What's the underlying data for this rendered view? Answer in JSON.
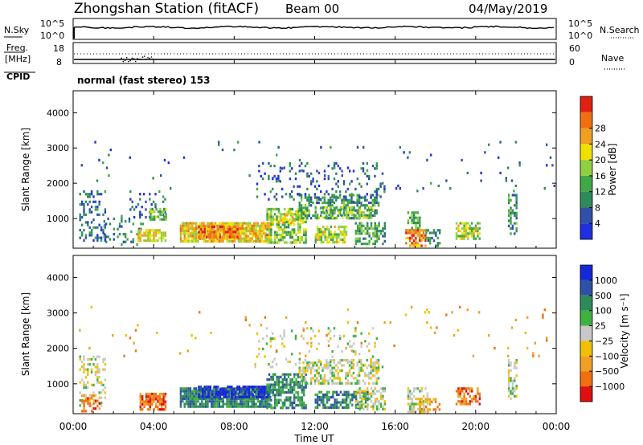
{
  "header": {
    "station": "Zhongshan Station (fitACF)",
    "beam": "Beam 00",
    "date": "04/May/2019"
  },
  "noise_panel": {
    "left_label": "N.Sky",
    "right_label": "N.Search",
    "ytick_top": "10^5",
    "ytick_bottom": "10^0"
  },
  "freq_panel": {
    "left_label_line1": "Freq.",
    "left_label_line2": "[MHz]",
    "left_ticks": [
      "18",
      "8"
    ],
    "right_label": "Nave",
    "right_ticks": [
      "60",
      "0"
    ],
    "cpid_label": "CPID",
    "cpid_text": "normal (fast stereo) 153"
  },
  "colors": {
    "power_scale": [
      "#2030e0",
      "#3050a8",
      "#2e8a5a",
      "#40a845",
      "#90d040",
      "#f0e000",
      "#f0a020",
      "#f07010",
      "#e02010"
    ],
    "velocity_scale": [
      "#1428d8",
      "#3050a8",
      "#2e8a5a",
      "#40b040",
      "#c8c8c8",
      "#f0c000",
      "#f0a020",
      "#f07010",
      "#e01010"
    ]
  },
  "chart_data": [
    {
      "type": "heatmap",
      "name": "power",
      "xlabel": "",
      "ylabel": "Slant Range [km]",
      "yticks": [
        "1000",
        "2000",
        "3000",
        "4000"
      ],
      "ylim": [
        180,
        4600
      ],
      "xlim": [
        0,
        24
      ],
      "colorbar": {
        "label": "Power [dB]",
        "ticks": [
          "4",
          "8",
          "12",
          "16",
          "20",
          "24",
          "28"
        ],
        "range": [
          0,
          32
        ]
      },
      "regions": [
        {
          "x0": 0.3,
          "x1": 1.6,
          "y0": 400,
          "y1": 1800,
          "v": 6,
          "d": 0.35
        },
        {
          "x0": 1.5,
          "x1": 3.5,
          "y0": 250,
          "y1": 1100,
          "v": 8,
          "d": 0.2
        },
        {
          "x0": 3.2,
          "x1": 4.6,
          "y0": 350,
          "y1": 700,
          "v": 20,
          "d": 0.7
        },
        {
          "x0": 2.8,
          "x1": 4.6,
          "y0": 1000,
          "y1": 1800,
          "v": 5,
          "d": 0.2
        },
        {
          "x0": 3.8,
          "x1": 4.6,
          "y0": 1000,
          "y1": 1300,
          "v": 13,
          "d": 0.6
        },
        {
          "x0": 5.3,
          "x1": 9.8,
          "y0": 350,
          "y1": 900,
          "v": 22,
          "d": 0.9
        },
        {
          "x0": 6.2,
          "x1": 8.2,
          "y0": 450,
          "y1": 800,
          "v": 27,
          "d": 0.7
        },
        {
          "x0": 9.6,
          "x1": 11.6,
          "y0": 300,
          "y1": 1300,
          "v": 14,
          "d": 0.65
        },
        {
          "x0": 10.2,
          "x1": 11.4,
          "y0": 900,
          "y1": 1200,
          "v": 20,
          "d": 0.6
        },
        {
          "x0": 11.2,
          "x1": 15.2,
          "y0": 1000,
          "y1": 1700,
          "v": 9,
          "d": 0.5
        },
        {
          "x0": 12.0,
          "x1": 15.0,
          "y0": 1000,
          "y1": 1350,
          "v": 15,
          "d": 0.5
        },
        {
          "x0": 12.0,
          "x1": 13.6,
          "y0": 300,
          "y1": 800,
          "v": 17,
          "d": 0.7
        },
        {
          "x0": 14.0,
          "x1": 15.5,
          "y0": 250,
          "y1": 900,
          "v": 11,
          "d": 0.5
        },
        {
          "x0": 9.0,
          "x1": 15.5,
          "y0": 1500,
          "y1": 2600,
          "v": 5,
          "d": 0.12
        },
        {
          "x0": 16.5,
          "x1": 17.5,
          "y0": 200,
          "y1": 700,
          "v": 27,
          "d": 0.75
        },
        {
          "x0": 16.6,
          "x1": 17.2,
          "y0": 700,
          "y1": 1200,
          "v": 12,
          "d": 0.55
        },
        {
          "x0": 17.5,
          "x1": 18.2,
          "y0": 200,
          "y1": 700,
          "v": 8,
          "d": 0.4
        },
        {
          "x0": 19.0,
          "x1": 20.2,
          "y0": 450,
          "y1": 900,
          "v": 17,
          "d": 0.55
        },
        {
          "x0": 21.6,
          "x1": 22.0,
          "y0": 600,
          "y1": 1700,
          "v": 9,
          "d": 0.5
        },
        {
          "x0": 0.0,
          "x1": 24.0,
          "y0": 1800,
          "y1": 3200,
          "v": 5,
          "d": 0.015
        }
      ]
    },
    {
      "type": "heatmap",
      "name": "velocity",
      "xlabel": "Time UT",
      "ylabel": "Slant Range [km]",
      "xticks": [
        "00:00",
        "04:00",
        "08:00",
        "12:00",
        "16:00",
        "20:00",
        "00:00"
      ],
      "yticks": [
        "1000",
        "2000",
        "3000",
        "4000"
      ],
      "ylim": [
        180,
        4600
      ],
      "xlim": [
        0,
        24
      ],
      "colorbar": {
        "label": "Velocity [m s⁻¹]",
        "ticks": [
          "1000",
          "500",
          "100",
          "25",
          "−25",
          "−100",
          "−500",
          "−1000"
        ]
      },
      "regions": [
        {
          "x0": 0.3,
          "x1": 1.6,
          "y0": 400,
          "y1": 1800,
          "v": 4,
          "d": 0.3
        },
        {
          "x0": 0.4,
          "x1": 1.3,
          "y0": 250,
          "y1": 700,
          "v": 7,
          "d": 0.45
        },
        {
          "x0": 3.3,
          "x1": 4.6,
          "y0": 300,
          "y1": 750,
          "v": 7,
          "d": 0.75
        },
        {
          "x0": 5.3,
          "x1": 9.8,
          "y0": 350,
          "y1": 900,
          "v": 2,
          "d": 0.9
        },
        {
          "x0": 6.2,
          "x1": 9.8,
          "y0": 600,
          "y1": 950,
          "v": 0,
          "d": 0.7
        },
        {
          "x0": 9.6,
          "x1": 11.6,
          "y0": 300,
          "y1": 1300,
          "v": 2,
          "d": 0.65
        },
        {
          "x0": 11.2,
          "x1": 15.2,
          "y0": 1000,
          "y1": 1700,
          "v": 4,
          "d": 0.5
        },
        {
          "x0": 12.0,
          "x1": 14.6,
          "y0": 300,
          "y1": 800,
          "v": 2,
          "d": 0.65
        },
        {
          "x0": 14.0,
          "x1": 15.5,
          "y0": 250,
          "y1": 900,
          "v": 4,
          "d": 0.5
        },
        {
          "x0": 9.0,
          "x1": 15.5,
          "y0": 1500,
          "y1": 2600,
          "v": 4,
          "d": 0.1
        },
        {
          "x0": 16.6,
          "x1": 17.6,
          "y0": 200,
          "y1": 900,
          "v": 4,
          "d": 0.6
        },
        {
          "x0": 17.2,
          "x1": 18.2,
          "y0": 200,
          "y1": 600,
          "v": 6,
          "d": 0.4
        },
        {
          "x0": 19.0,
          "x1": 20.2,
          "y0": 450,
          "y1": 900,
          "v": 7,
          "d": 0.55
        },
        {
          "x0": 21.6,
          "x1": 22.0,
          "y0": 600,
          "y1": 1700,
          "v": 4,
          "d": 0.45
        },
        {
          "x0": 0.0,
          "x1": 24.0,
          "y0": 1800,
          "y1": 3200,
          "v": 6,
          "d": 0.015
        }
      ]
    }
  ]
}
